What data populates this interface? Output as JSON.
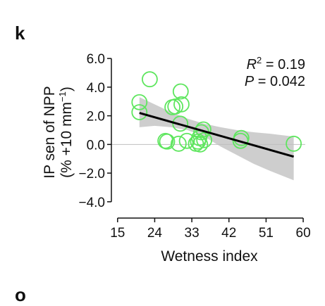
{
  "panel_letter": "k",
  "next_panel_letter": "o",
  "chart_data": {
    "type": "scatter",
    "xlabel": "Wetness index",
    "ylabel_line1": "IP sen of NPP",
    "ylabel_line2_prefix": "(% +10 mm",
    "ylabel_line2_sup": "−1",
    "ylabel_line2_suffix": ")",
    "xlim": [
      13.5,
      60.5
    ],
    "ylim": [
      -4.5,
      6.4
    ],
    "xticks": [
      15,
      24,
      33,
      42,
      51,
      60
    ],
    "xtick_labels": [
      "15",
      "24",
      "33",
      "42",
      "51",
      "60"
    ],
    "yticks": [
      6,
      4,
      2,
      0,
      -2,
      -4
    ],
    "ytick_labels": [
      "6.0",
      "4.0",
      "2.0",
      "0.0",
      "−2.0",
      "−4.0"
    ],
    "stats": {
      "r2_label": "R",
      "r2_sup": "2",
      "r2_value": " = 0.19",
      "p_label": "P",
      "p_value": " = 0.042"
    },
    "points": [
      {
        "x": 20.3,
        "y": 2.95
      },
      {
        "x": 20.3,
        "y": 2.25
      },
      {
        "x": 22.8,
        "y": 4.55
      },
      {
        "x": 26.6,
        "y": 0.25
      },
      {
        "x": 27.0,
        "y": 0.2
      },
      {
        "x": 28.3,
        "y": 2.6
      },
      {
        "x": 29.0,
        "y": 2.65
      },
      {
        "x": 29.8,
        "y": 0.05
      },
      {
        "x": 30.2,
        "y": 1.45
      },
      {
        "x": 30.3,
        "y": 3.7
      },
      {
        "x": 30.5,
        "y": 2.8
      },
      {
        "x": 31.8,
        "y": 0.25
      },
      {
        "x": 34.0,
        "y": 0.05
      },
      {
        "x": 34.5,
        "y": 0.2
      },
      {
        "x": 34.8,
        "y": 0.45
      },
      {
        "x": 35.0,
        "y": 0.0
      },
      {
        "x": 35.3,
        "y": 0.85
      },
      {
        "x": 35.8,
        "y": 1.05
      },
      {
        "x": 36.0,
        "y": 0.3
      },
      {
        "x": 44.8,
        "y": 0.25
      },
      {
        "x": 45.0,
        "y": 0.45
      },
      {
        "x": 57.7,
        "y": 0.05
      }
    ],
    "fit_line": {
      "x": [
        20.3,
        57.7
      ],
      "y": [
        2.2,
        -0.85
      ]
    },
    "confidence_band": {
      "x": [
        20.3,
        24,
        28,
        32,
        36,
        40,
        44,
        48,
        52,
        57.7
      ],
      "upper": [
        3.3,
        2.8,
        2.25,
        1.8,
        1.45,
        1.2,
        1.0,
        0.85,
        0.75,
        0.55
      ],
      "lower": [
        1.2,
        1.3,
        1.2,
        1.0,
        0.55,
        -0.15,
        -0.75,
        -1.35,
        -1.85,
        -2.5
      ]
    },
    "colors": {
      "points": "#5ee65e",
      "fit_line": "#000000",
      "band": "#c9c9c9",
      "zero_line": "#bfbfbf",
      "axis": "#111111"
    }
  }
}
